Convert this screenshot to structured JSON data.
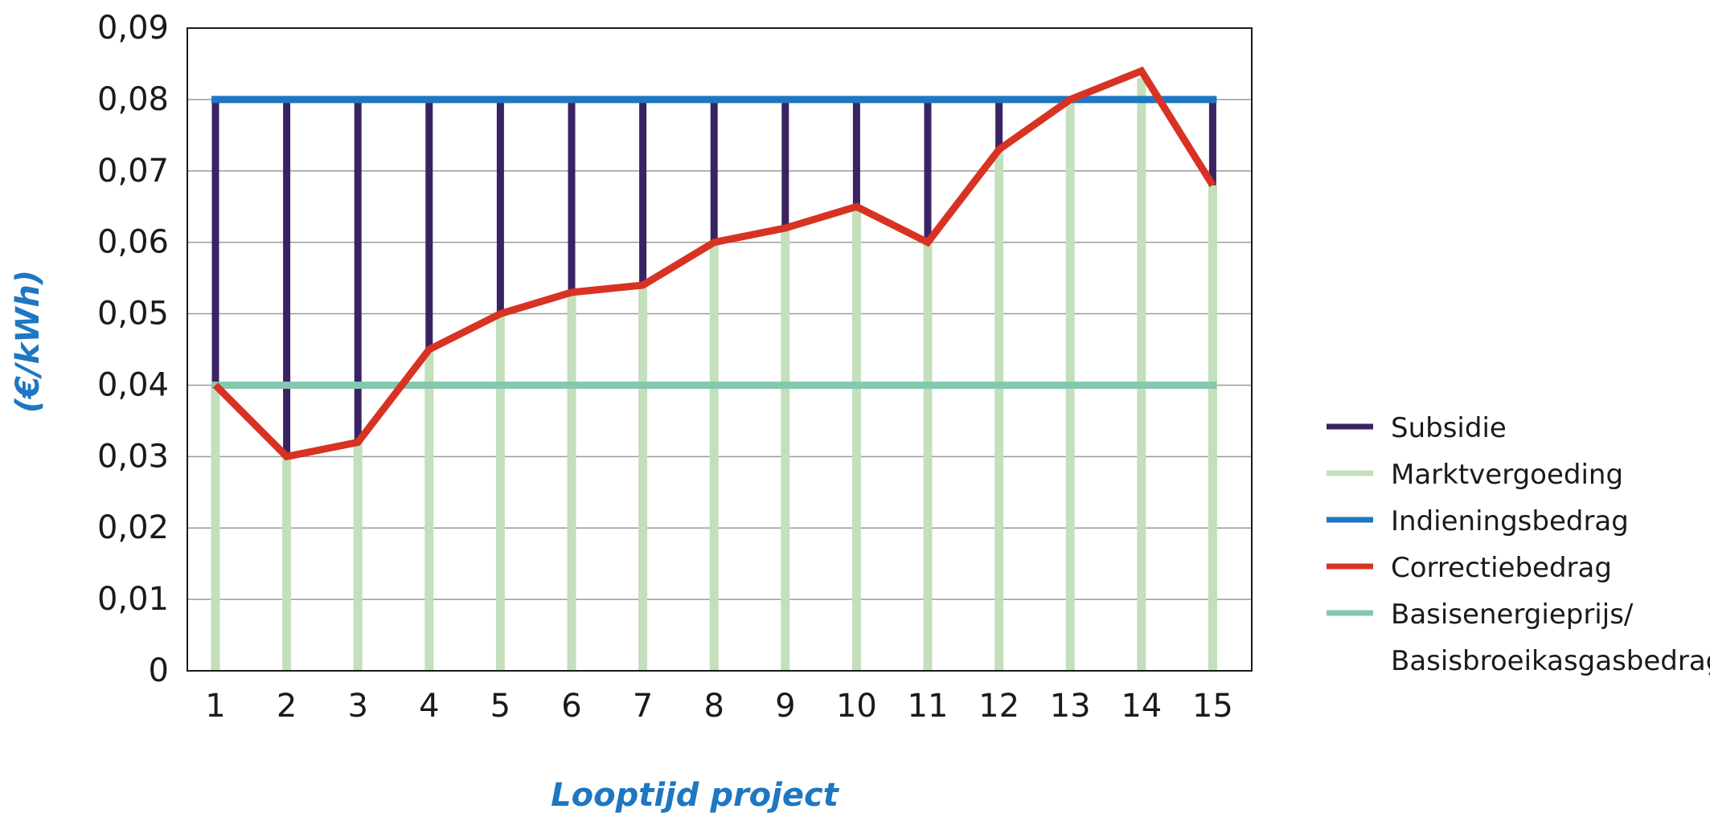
{
  "chart_data": {
    "type": "line",
    "title": "",
    "xlabel": "Looptijd project",
    "ylabel": "(€/kWh)",
    "categories": [
      "1",
      "2",
      "3",
      "4",
      "5",
      "6",
      "7",
      "8",
      "9",
      "10",
      "11",
      "12",
      "13",
      "14",
      "15"
    ],
    "y_ticks": [
      "0",
      "0,01",
      "0,02",
      "0,03",
      "0,04",
      "0,05",
      "0,06",
      "0,07",
      "0,08",
      "0,09"
    ],
    "ylim": [
      0,
      0.09
    ],
    "grid": true,
    "legend_position": "right",
    "series": [
      {
        "name": "Subsidie",
        "kind": "vertical-bar",
        "color": "#3b2363",
        "values": [
          0.04,
          0.05,
          0.048,
          0.035,
          0.03,
          0.027,
          0.026,
          0.02,
          0.018,
          0.015,
          0.02,
          0.007,
          0.0,
          0.0,
          0.012
        ]
      },
      {
        "name": "Marktvergoeding",
        "kind": "vertical-bar",
        "color": "#c3dfbc",
        "values": [
          0.04,
          0.03,
          0.032,
          0.045,
          0.05,
          0.053,
          0.054,
          0.06,
          0.062,
          0.065,
          0.06,
          0.073,
          0.08,
          0.083,
          0.068
        ]
      },
      {
        "name": "Indieningsbedrag",
        "kind": "hline",
        "color": "#1d77c2",
        "values": [
          0.08,
          0.08,
          0.08,
          0.08,
          0.08,
          0.08,
          0.08,
          0.08,
          0.08,
          0.08,
          0.08,
          0.08,
          0.08,
          0.08,
          0.08
        ]
      },
      {
        "name": "Correctiebedrag",
        "kind": "line",
        "color": "#d83223",
        "values": [
          0.04,
          0.03,
          0.032,
          0.045,
          0.05,
          0.053,
          0.054,
          0.06,
          0.062,
          0.065,
          0.06,
          0.073,
          0.08,
          0.084,
          0.068
        ]
      },
      {
        "name": "Basisenergieprijs/\nBasisbroeikasgasbedrag",
        "kind": "hline",
        "color": "#84c8b0",
        "values": [
          0.04,
          0.04,
          0.04,
          0.04,
          0.04,
          0.04,
          0.04,
          0.04,
          0.04,
          0.04,
          0.04,
          0.04,
          0.04,
          0.04,
          0.04
        ]
      }
    ],
    "legend": [
      {
        "label": "Subsidie",
        "color": "#3b2363"
      },
      {
        "label": "Marktvergoeding",
        "color": "#c3dfbc"
      },
      {
        "label": "Indieningsbedrag",
        "color": "#1d77c2"
      },
      {
        "label": "Correctiebedrag",
        "color": "#d83223"
      },
      {
        "label_lines": [
          "Basisenergieprijs/",
          "Basisbroeikasgasbedrag"
        ],
        "color": "#84c8b0"
      }
    ]
  }
}
